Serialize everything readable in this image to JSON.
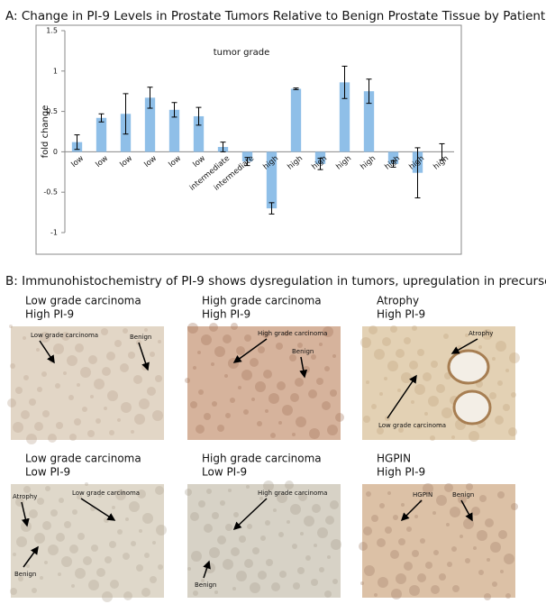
{
  "chart_data": {
    "type": "bar",
    "title": "A: Change in PI-9 Levels in Prostate Tumors Relative to Benign Prostate Tissue by Patient",
    "y_label": "fold change",
    "annotation": "tumor grade",
    "categories": [
      "low",
      "low",
      "low",
      "low",
      "low",
      "low",
      "intermediate",
      "intermediate",
      "high",
      "high",
      "high",
      "high",
      "high",
      "high",
      "high",
      "high"
    ],
    "values": [
      0.12,
      0.42,
      0.47,
      0.67,
      0.52,
      0.44,
      0.06,
      -0.12,
      -0.7,
      0.78,
      -0.15,
      0.86,
      0.75,
      -0.15,
      -0.26,
      0
    ],
    "errors": [
      0.09,
      0.05,
      0.25,
      0.13,
      0.09,
      0.11,
      0.06,
      0.05,
      0.07,
      0.01,
      0.07,
      0.2,
      0.15,
      0.04,
      0.31,
      0.1
    ],
    "color": "#8fbfe8",
    "ylim": [
      -1,
      1.5
    ],
    "yticks": [
      -1,
      -0.5,
      0,
      0.5,
      1,
      1.5
    ]
  },
  "panel_b": {
    "title": "B: Immunohistochemistry of PI-9 shows dysregulation in tumors, upregulation in precursors",
    "panels": [
      {
        "caption": [
          "Low grade carcinoma",
          "High PI-9"
        ],
        "labels": [
          "Low grade carcinoma",
          "Benign"
        ]
      },
      {
        "caption": [
          "High grade carcinoma",
          "High PI-9"
        ],
        "labels": [
          "High grade carcinoma",
          "Benign"
        ]
      },
      {
        "caption": [
          "Atrophy",
          "High PI-9"
        ],
        "labels": [
          "Atrophy",
          "Low grade carcinoma"
        ]
      },
      {
        "caption": [
          "Low grade carcinoma",
          "Low PI-9"
        ],
        "labels": [
          "Atrophy",
          "Low grade carcinoma",
          "Benign"
        ]
      },
      {
        "caption": [
          "High grade carcinoma",
          "Low PI-9"
        ],
        "labels": [
          "High grade carcinoma",
          "Benign"
        ]
      },
      {
        "caption": [
          "HGPIN",
          "High PI-9"
        ],
        "labels": [
          "HGPIN",
          "Benign"
        ]
      }
    ]
  }
}
